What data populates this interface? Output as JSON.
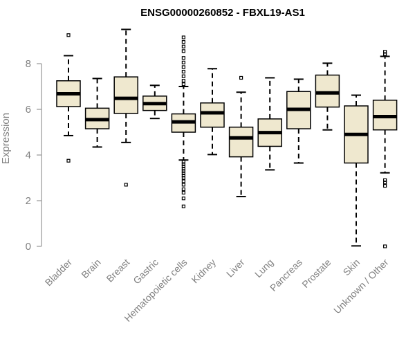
{
  "chart_data": {
    "type": "boxplot",
    "title": "ENSG00000260852 - FBXL19-AS1",
    "xlabel": "",
    "ylabel": "Expression",
    "ylim": [
      0,
      9.6
    ],
    "yticks": [
      0,
      2,
      4,
      6,
      8
    ],
    "ytick_labels": [
      "0",
      "2",
      "4",
      "6",
      "8"
    ],
    "box_color": "#efe8cf",
    "categories": [
      "Bladder",
      "Brain",
      "Breast",
      "Gastric",
      "Hematopoietic cells",
      "Kidney",
      "Liver",
      "Lung",
      "Pancreas",
      "Prostate",
      "Skin",
      "Unknown / Other"
    ],
    "boxes": [
      {
        "whisker_low": 4.85,
        "q1": 6.12,
        "median": 6.68,
        "q3": 7.25,
        "whisker_high": 8.35,
        "outliers": [
          9.25,
          3.75
        ]
      },
      {
        "whisker_low": 4.35,
        "q1": 5.15,
        "median": 5.55,
        "q3": 6.05,
        "whisker_high": 7.35,
        "outliers": []
      },
      {
        "whisker_low": 4.55,
        "q1": 5.82,
        "median": 6.48,
        "q3": 7.42,
        "whisker_high": 9.5,
        "outliers": [
          2.7
        ]
      },
      {
        "whisker_low": 5.6,
        "q1": 5.95,
        "median": 6.25,
        "q3": 6.58,
        "whisker_high": 7.05,
        "outliers": []
      },
      {
        "whisker_low": 3.78,
        "q1": 5.0,
        "median": 5.45,
        "q3": 5.8,
        "whisker_high": 7.0,
        "outliers": [
          9.15,
          8.95,
          8.75,
          8.55,
          8.25,
          8.05,
          7.85,
          7.65,
          7.45,
          7.25,
          7.1,
          3.7,
          3.6,
          3.5,
          3.4,
          3.3,
          3.2,
          3.1,
          3.0,
          2.85,
          2.7,
          2.5,
          2.35,
          2.1,
          1.75
        ]
      },
      {
        "whisker_low": 4.02,
        "q1": 5.22,
        "median": 5.85,
        "q3": 6.28,
        "whisker_high": 7.78,
        "outliers": []
      },
      {
        "whisker_low": 2.18,
        "q1": 3.92,
        "median": 4.75,
        "q3": 5.22,
        "whisker_high": 6.75,
        "outliers": [
          7.38
        ]
      },
      {
        "whisker_low": 3.35,
        "q1": 4.38,
        "median": 4.98,
        "q3": 5.58,
        "whisker_high": 7.38,
        "outliers": []
      },
      {
        "whisker_low": 3.65,
        "q1": 5.15,
        "median": 6.0,
        "q3": 6.78,
        "whisker_high": 7.32,
        "outliers": []
      },
      {
        "whisker_low": 5.1,
        "q1": 6.1,
        "median": 6.72,
        "q3": 7.5,
        "whisker_high": 8.02,
        "outliers": []
      },
      {
        "whisker_low": 0.02,
        "q1": 3.65,
        "median": 4.9,
        "q3": 6.15,
        "whisker_high": 6.62,
        "outliers": []
      },
      {
        "whisker_low": 3.22,
        "q1": 5.1,
        "median": 5.68,
        "q3": 6.4,
        "whisker_high": 8.32,
        "outliers": [
          8.52,
          8.42,
          2.9,
          2.8,
          2.65,
          0.0
        ]
      }
    ]
  }
}
